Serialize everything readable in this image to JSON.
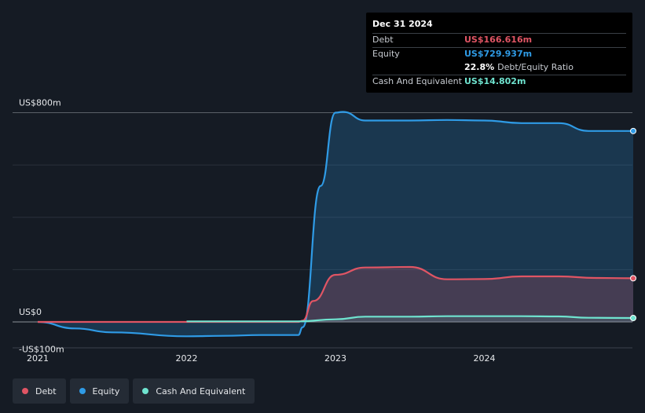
{
  "tooltip": {
    "date": "Dec 31 2024",
    "debt_label": "Debt",
    "debt_value": "US$166.616m",
    "equity_label": "Equity",
    "equity_value": "US$729.937m",
    "ratio_value": "22.8%",
    "ratio_label": "Debt/Equity Ratio",
    "cash_label": "Cash And Equivalent",
    "cash_value": "US$14.802m"
  },
  "legend": [
    {
      "label": "Debt",
      "color": "#e05564"
    },
    {
      "label": "Equity",
      "color": "#2f9be6"
    },
    {
      "label": "Cash And Equivalent",
      "color": "#6fe3cf"
    }
  ],
  "chart_data": {
    "type": "area",
    "y_tick_labels": [
      "US$800m",
      "US$0",
      "-US$100m"
    ],
    "x_tick_labels": [
      "2021",
      "2022",
      "2023",
      "2024"
    ],
    "xlim": [
      2021.0,
      2025.0
    ],
    "ylim": [
      -100,
      800
    ],
    "grid": true,
    "legend_position": "bottom-left",
    "series": [
      {
        "name": "Debt",
        "color": "#e05564",
        "x": [
          2021.0,
          2021.5,
          2022.0,
          2022.5,
          2022.75,
          2022.78,
          2022.85,
          2023.0,
          2023.2,
          2023.5,
          2023.75,
          2024.0,
          2024.25,
          2024.5,
          2024.75,
          2025.0
        ],
        "y": [
          0,
          0,
          0,
          0,
          0,
          5,
          80,
          180,
          208,
          210,
          163,
          164,
          174,
          174,
          168,
          167
        ]
      },
      {
        "name": "Equity",
        "color": "#2f9be6",
        "x": [
          2021.0,
          2021.25,
          2021.5,
          2022.0,
          2022.25,
          2022.5,
          2022.75,
          2022.78,
          2022.9,
          2023.0,
          2023.05,
          2023.2,
          2023.5,
          2023.75,
          2024.0,
          2024.25,
          2024.5,
          2024.7,
          2025.0
        ],
        "y": [
          0,
          -25,
          -40,
          -55,
          -53,
          -50,
          -50,
          -20,
          520,
          800,
          803,
          770,
          770,
          772,
          770,
          760,
          760,
          730,
          730
        ]
      },
      {
        "name": "Cash And Equivalent",
        "color": "#6fe3cf",
        "x": [
          2022.0,
          2022.5,
          2022.75,
          2023.0,
          2023.2,
          2023.5,
          2023.75,
          2024.0,
          2024.25,
          2024.5,
          2024.7,
          2025.0
        ],
        "y": [
          2,
          2,
          2,
          10,
          20,
          20,
          22,
          22,
          22,
          21,
          16,
          15
        ]
      }
    ]
  }
}
